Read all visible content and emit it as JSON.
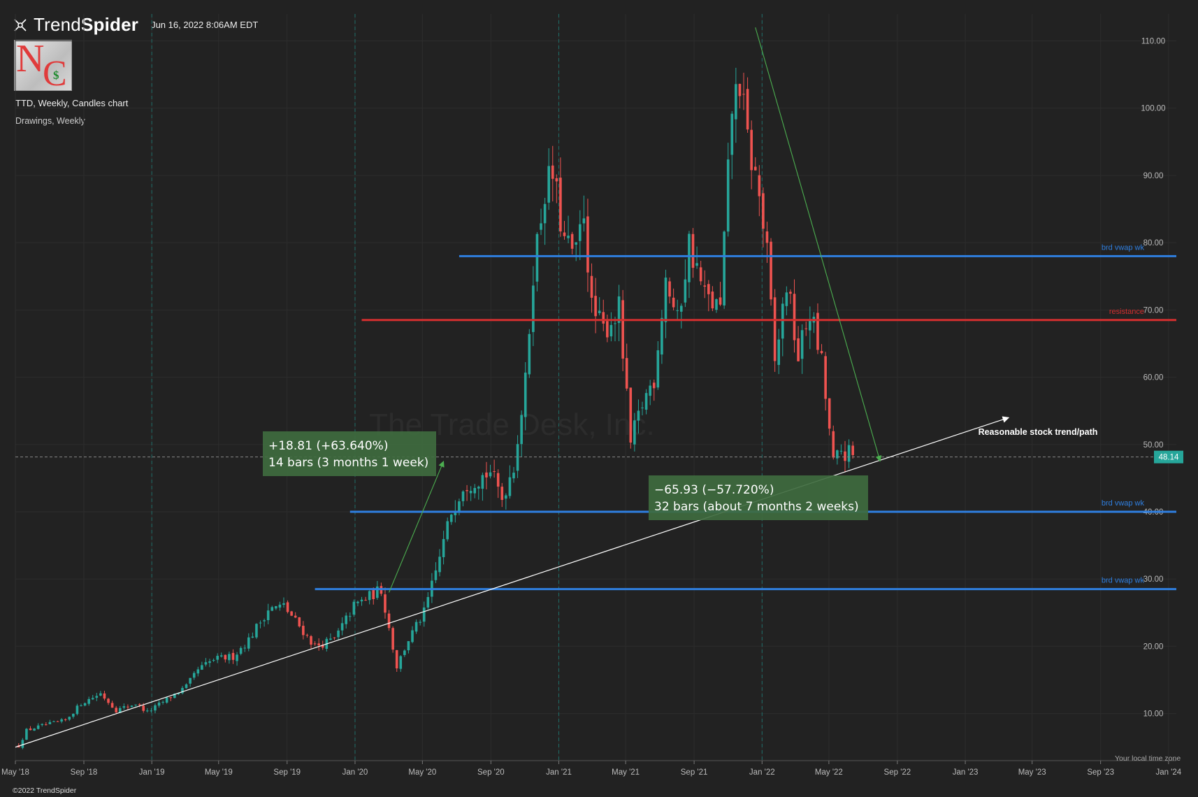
{
  "header": {
    "brand_light": "Trend",
    "brand_bold": "Spider",
    "timestamp": "Jun 16, 2022 8:06AM EDT",
    "chart_title": "TTD, Weekly, Candles chart",
    "subtitle": "Drawings, Weekly",
    "logo_text": {
      "n": "N",
      "c": "C",
      "dollar": "$"
    }
  },
  "footer": {
    "copyright": "©2022 TrendSpider",
    "timezone_note": "Your local time zone"
  },
  "colors": {
    "background": "#222222",
    "up": "#26a69a",
    "down": "#ef5350",
    "vwap": "#2f7fe0",
    "resistance": "#d32f2f",
    "arrow_green": "#4caf50",
    "trend_white": "#ffffff",
    "price_badge": "#26a69a"
  },
  "chart_data": {
    "type": "candlestick",
    "symbol": "TTD",
    "interval": "Weekly",
    "x_range": [
      "2018-05-01",
      "2024-01-15"
    ],
    "y_range": [
      3,
      114
    ],
    "y_ticks": [
      10,
      20,
      30,
      40,
      50,
      60,
      70,
      80,
      90,
      100,
      110
    ],
    "y_tick_labels": [
      "10.00",
      "20.00",
      "30.00",
      "40.00",
      "50.00",
      "60.00",
      "70.00",
      "80.00",
      "90.00",
      "100.00",
      "110.00"
    ],
    "x_tick_labels": [
      "May '18",
      "Sep '18",
      "Jan '19",
      "May '19",
      "Sep '19",
      "Jan '20",
      "May '20",
      "Sep '20",
      "Jan '21",
      "May '21",
      "Sep '21",
      "Jan '22",
      "May '22",
      "Sep '22",
      "Jan '23",
      "May '23",
      "Sep '23",
      "Jan '24"
    ],
    "x_tick_dates": [
      "2018-05-01",
      "2018-09-01",
      "2019-01-01",
      "2019-05-01",
      "2019-09-01",
      "2020-01-01",
      "2020-05-01",
      "2020-09-01",
      "2021-01-01",
      "2021-05-01",
      "2021-09-01",
      "2022-01-01",
      "2022-05-01",
      "2022-09-01",
      "2023-01-01",
      "2023-05-01",
      "2023-09-01",
      "2024-01-01"
    ],
    "year_separators": [
      "2019-01-01",
      "2020-01-01",
      "2021-01-01",
      "2022-01-01"
    ],
    "last_price": 48.14,
    "last_price_label": "48.14",
    "price_path": [
      [
        "2018-05-07",
        5.2
      ],
      [
        "2018-05-21",
        7.5
      ],
      [
        "2018-06-18",
        8.2
      ],
      [
        "2018-07-30",
        9.0
      ],
      [
        "2018-08-27",
        11.5
      ],
      [
        "2018-10-01",
        13.0
      ],
      [
        "2018-10-29",
        10.5
      ],
      [
        "2018-12-03",
        11.5
      ],
      [
        "2018-12-24",
        10.2
      ],
      [
        "2019-02-04",
        12.5
      ],
      [
        "2019-03-04",
        14.0
      ],
      [
        "2019-03-25",
        16.5
      ],
      [
        "2019-04-22",
        18.0
      ],
      [
        "2019-05-27",
        18.5
      ],
      [
        "2019-06-24",
        21.0
      ],
      [
        "2019-07-29",
        25.5
      ],
      [
        "2019-08-26",
        26.0
      ],
      [
        "2019-09-23",
        23.0
      ],
      [
        "2019-10-21",
        20.0
      ],
      [
        "2019-11-25",
        21.0
      ],
      [
        "2019-12-30",
        26.0
      ],
      [
        "2020-02-17",
        28.5
      ],
      [
        "2020-03-16",
        17.0
      ],
      [
        "2020-04-06",
        21.0
      ],
      [
        "2020-05-04",
        25.0
      ],
      [
        "2020-05-25",
        31.0
      ],
      [
        "2020-06-22",
        40.0
      ],
      [
        "2020-07-13",
        44.0
      ],
      [
        "2020-08-10",
        45.0
      ],
      [
        "2020-08-31",
        46.0
      ],
      [
        "2020-09-21",
        42.0
      ],
      [
        "2020-10-12",
        47.0
      ],
      [
        "2020-11-02",
        59.0
      ],
      [
        "2020-11-16",
        76.0
      ],
      [
        "2020-12-07",
        88.0
      ],
      [
        "2020-12-21",
        90.0
      ],
      [
        "2021-01-11",
        80.0
      ],
      [
        "2021-02-01",
        78.0
      ],
      [
        "2021-02-15",
        85.0
      ],
      [
        "2021-03-01",
        70.0
      ],
      [
        "2021-03-22",
        67.0
      ],
      [
        "2021-04-19",
        70.0
      ],
      [
        "2021-05-10",
        50.0
      ],
      [
        "2021-05-31",
        56.0
      ],
      [
        "2021-06-21",
        60.0
      ],
      [
        "2021-07-12",
        75.0
      ],
      [
        "2021-08-02",
        68.0
      ],
      [
        "2021-08-23",
        80.0
      ],
      [
        "2021-09-20",
        72.0
      ],
      [
        "2021-10-18",
        70.0
      ],
      [
        "2021-11-08",
        100.0
      ],
      [
        "2021-11-22",
        104.0
      ],
      [
        "2021-12-06",
        95.0
      ],
      [
        "2021-12-27",
        87.0
      ],
      [
        "2022-01-10",
        78.0
      ],
      [
        "2022-01-24",
        62.0
      ],
      [
        "2022-02-14",
        74.0
      ],
      [
        "2022-03-07",
        63.0
      ],
      [
        "2022-03-28",
        70.0
      ],
      [
        "2022-04-18",
        62.0
      ],
      [
        "2022-05-09",
        47.0
      ],
      [
        "2022-05-23",
        49.0
      ],
      [
        "2022-06-13",
        48.14
      ]
    ],
    "horizontal_lines": [
      {
        "label": "brd vwap wk",
        "value": 78.0,
        "start": "2020-07-06",
        "color_key": "vwap"
      },
      {
        "label": "resistance",
        "value": 68.5,
        "start": "2020-01-13",
        "color_key": "resistance"
      },
      {
        "label": "brd vwap wk",
        "value": 40.0,
        "start": "2019-12-23",
        "color_key": "vwap"
      },
      {
        "label": "brd vwap wk",
        "value": 28.5,
        "start": "2019-10-21",
        "color_key": "vwap"
      }
    ],
    "trend_line": {
      "label": "Reasonable stock trend/path",
      "from": [
        "2018-05-01",
        5.0
      ],
      "to": [
        "2023-03-20",
        54.0
      ]
    },
    "measure_up": {
      "from": [
        "2020-03-02",
        28.0
      ],
      "to": [
        "2020-06-08",
        47.5
      ],
      "line1": "+18.81 (+63.640%)",
      "line2": "14 bars (3 months 1 week)"
    },
    "measure_down": {
      "from": [
        "2021-12-20",
        112.0
      ],
      "to": [
        "2022-08-01",
        47.5
      ],
      "line1": "−65.93 (−57.720%)",
      "line2": "32 bars (about 7 months 2 weeks)"
    },
    "watermark": "The Trade Desk, Inc."
  }
}
